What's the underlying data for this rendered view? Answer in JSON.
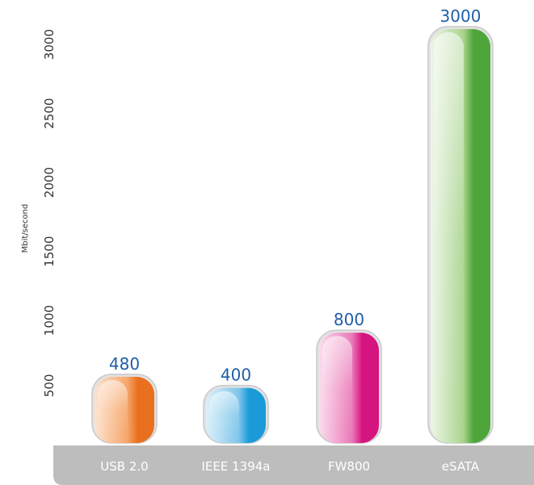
{
  "chart_data": {
    "type": "bar",
    "title": "",
    "xlabel": "",
    "ylabel": "Mbit/second",
    "categories": [
      "USB 2.0",
      "IEEE 1394a",
      "FW800",
      "eSATA"
    ],
    "values": [
      480,
      400,
      800,
      3000
    ],
    "data_labels": [
      "480",
      "400",
      "800",
      "3000"
    ],
    "yticks": [
      500,
      1000,
      1500,
      2000,
      2500,
      3000
    ],
    "ytick_labels": [
      "500",
      "1000",
      "1500",
      "2000",
      "2500",
      "3000"
    ],
    "ylim": [
      0,
      3000
    ],
    "grid": false,
    "legend": "none",
    "colors": {
      "bars": [
        {
          "light": "#fde3cf",
          "mid": "#f6a66a",
          "dark": "#e8701e",
          "edge": "#c9c9c9"
        },
        {
          "light": "#dcf0fa",
          "mid": "#7fc6ea",
          "dark": "#1a9bd8",
          "edge": "#c9c9c9"
        },
        {
          "light": "#fbdced",
          "mid": "#ea7ab8",
          "dark": "#d6147f",
          "edge": "#c9c9c9"
        },
        {
          "light": "#eef6e8",
          "mid": "#a9d48e",
          "dark": "#4ea53a",
          "edge": "#c9c9c9"
        }
      ],
      "value_label": "#1f5ea8",
      "axis_text": "#333333",
      "base_band": "#bdbdbd",
      "category_label": "#ffffff"
    }
  }
}
